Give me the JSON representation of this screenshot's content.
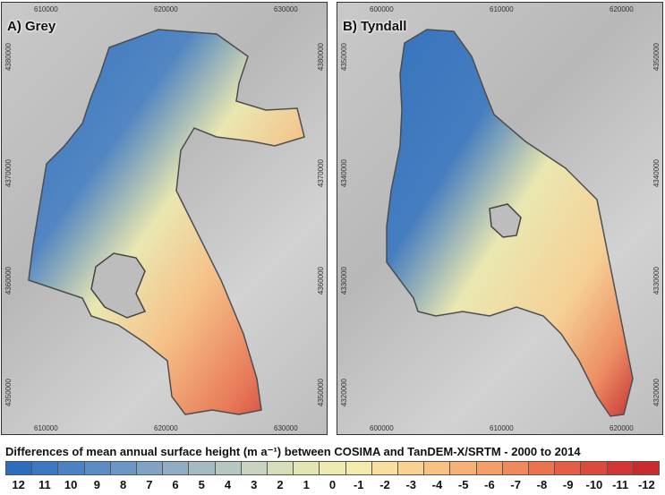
{
  "panels": [
    {
      "label": "A) Grey",
      "x_ticks_top": [
        "610000",
        "620000",
        "630000"
      ],
      "x_ticks_bottom": [
        "610000",
        "620000",
        "630000"
      ],
      "y_ticks_left": [
        "4380000",
        "4370000",
        "4360000",
        "4350000"
      ],
      "y_ticks_right": [
        "4380000",
        "4370000",
        "4360000",
        "4350000"
      ]
    },
    {
      "label": "B) Tyndall",
      "x_ticks_top": [
        "600000",
        "610000",
        "620000"
      ],
      "x_ticks_bottom": [
        "600000",
        "610000",
        "620000"
      ],
      "y_ticks_left": [
        "4350000",
        "4340000",
        "4330000",
        "4320000"
      ],
      "y_ticks_right": [
        "4350000",
        "4340000",
        "4330000",
        "4320000"
      ]
    }
  ],
  "legend": {
    "title": "Differences of mean annual surface height (m a⁻¹) between COSIMA and TanDEM-X/SRTM - 2000 to 2014",
    "labels": [
      "12",
      "11",
      "10",
      "9",
      "8",
      "7",
      "6",
      "5",
      "4",
      "3",
      "2",
      "1",
      "0",
      "-1",
      "-2",
      "-3",
      "-4",
      "-5",
      "-6",
      "-7",
      "-8",
      "-9",
      "-10",
      "-11",
      "-12"
    ],
    "colors": [
      "#2c6ebd",
      "#3b78c1",
      "#4a82c4",
      "#5b8cc6",
      "#6c96c7",
      "#7fa2c5",
      "#91adc3",
      "#a4bac3",
      "#b6c7c2",
      "#c7d3bf",
      "#d6ddb9",
      "#e3e6b3",
      "#eeebb0",
      "#f5e9ab",
      "#f8dfa0",
      "#f9d191",
      "#f9c183",
      "#f7b075",
      "#f49e68",
      "#f0895b",
      "#eb7450",
      "#e45e45",
      "#dc4a3c",
      "#d33534",
      "#c92a2c"
    ]
  }
}
